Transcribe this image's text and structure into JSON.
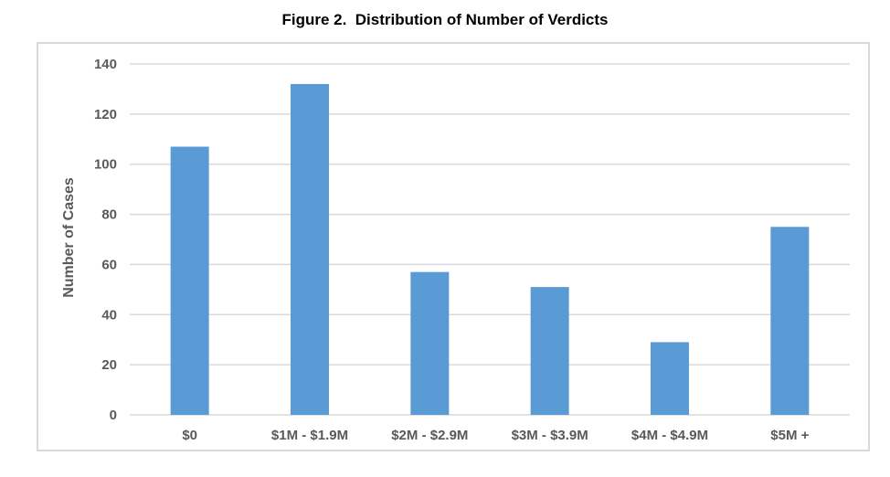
{
  "chart_data": {
    "type": "bar",
    "title": "Figure 2.  Distribution of Number of Verdicts",
    "xlabel": "",
    "ylabel": "Number of Cases",
    "categories": [
      "$0",
      "$1M - $1.9M",
      "$2M - $2.9M",
      "$3M - $3.9M",
      "$4M - $4.9M",
      "$5M +"
    ],
    "values": [
      107,
      132,
      57,
      51,
      29,
      75
    ],
    "ylim": [
      0,
      140
    ],
    "yticks": [
      0,
      20,
      40,
      60,
      80,
      100,
      120,
      140
    ],
    "grid": true,
    "legend": "none",
    "colors": {
      "bar": "#5b9bd5",
      "grid": "#d9d9d9",
      "tick_text": "#595959",
      "frame": "#d9d9d9"
    }
  }
}
